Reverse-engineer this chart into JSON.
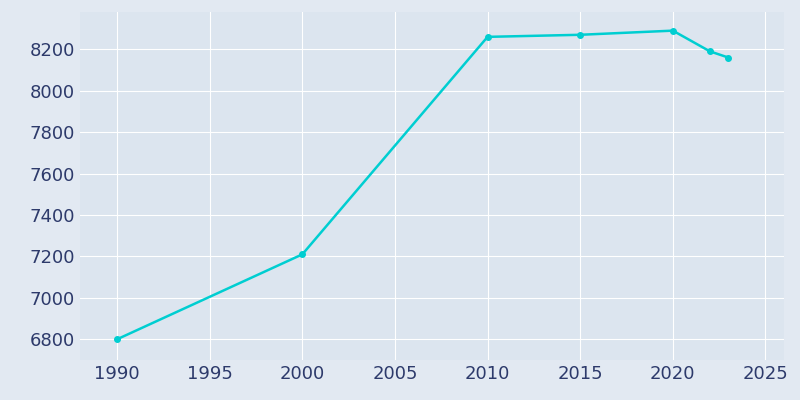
{
  "years": [
    1990,
    2000,
    2010,
    2015,
    2020,
    2022,
    2023
  ],
  "population": [
    6800,
    7210,
    8260,
    8270,
    8290,
    8190,
    8160
  ],
  "line_color": "#00CED1",
  "marker": "o",
  "marker_size": 4,
  "line_width": 1.8,
  "bg_color": "#E2E9F2",
  "plot_bg_color": "#DCE5EF",
  "grid_color": "#ffffff",
  "tick_color": "#2d3a6b",
  "xlim": [
    1988,
    2026
  ],
  "ylim": [
    6700,
    8380
  ],
  "xticks": [
    1990,
    1995,
    2000,
    2005,
    2010,
    2015,
    2020,
    2025
  ],
  "yticks": [
    6800,
    7000,
    7200,
    7400,
    7600,
    7800,
    8000,
    8200
  ],
  "tick_fontsize": 13
}
